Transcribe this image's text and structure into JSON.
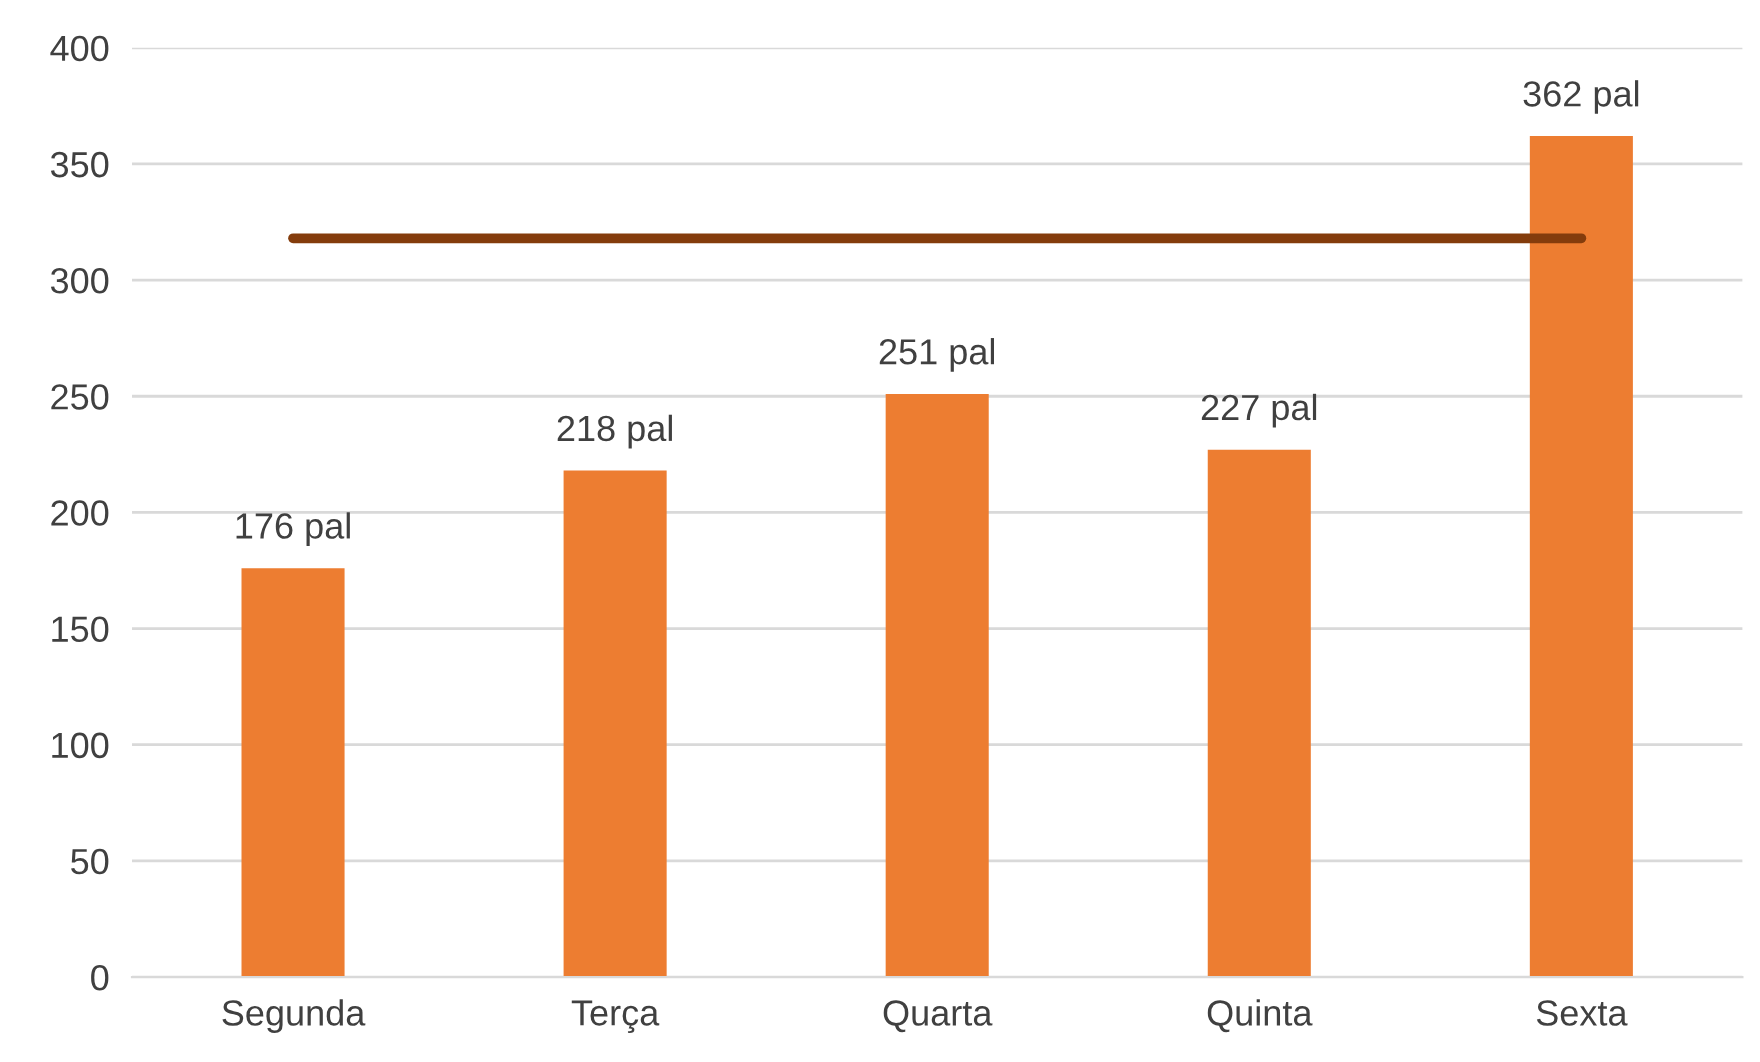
{
  "chart_data": {
    "type": "bar",
    "categories": [
      "Segunda",
      "Terça",
      "Quarta",
      "Quinta",
      "Sexta"
    ],
    "series": [
      {
        "color": "#ed7d31",
        "values": [
          176,
          218,
          251,
          227,
          362
        ],
        "value_labels": [
          "176 pal",
          "218 pal",
          "251 pal",
          "227 pal",
          "362 pal"
        ]
      },
      {
        "type": "line",
        "color": "#843c0c",
        "values": [
          318,
          318,
          318,
          318,
          318
        ],
        "marker": "none",
        "line_style": "solid"
      }
    ],
    "ylim": [
      0,
      400
    ],
    "yticks": [
      0,
      50,
      100,
      150,
      200,
      250,
      300,
      350,
      400
    ],
    "grid": "y",
    "legend": false
  }
}
